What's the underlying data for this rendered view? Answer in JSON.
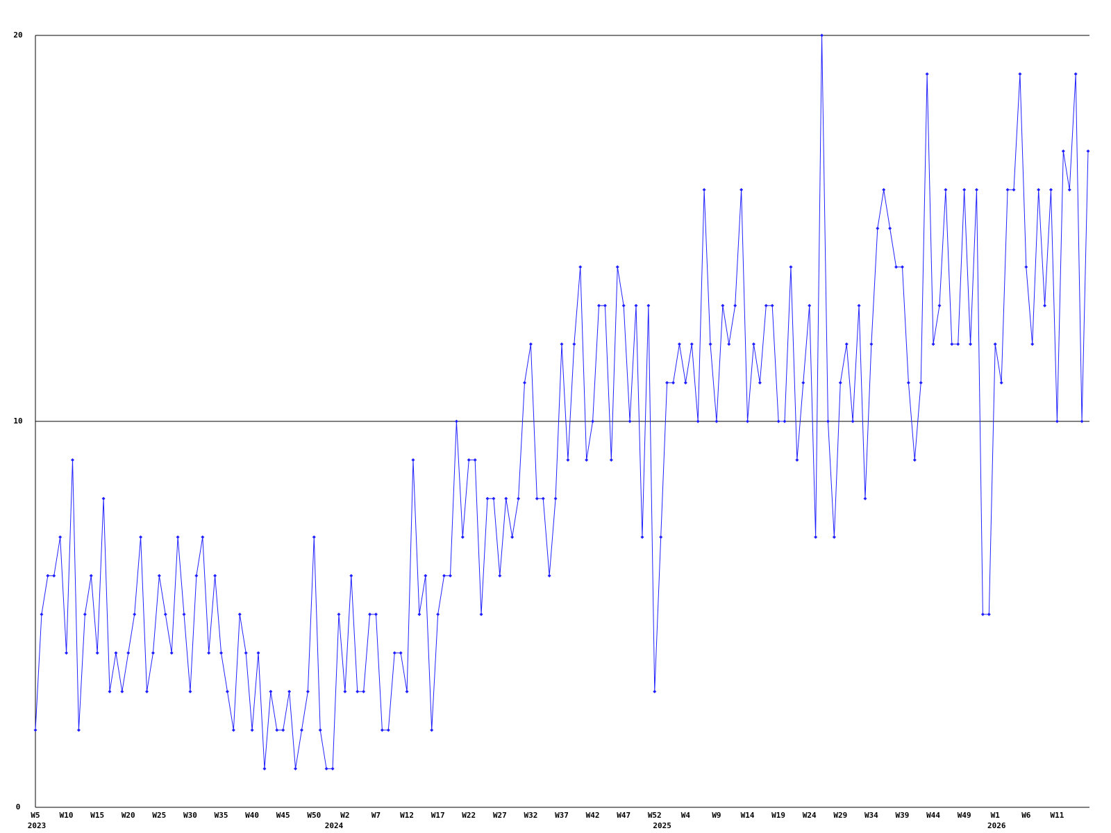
{
  "chart_data": {
    "type": "line",
    "categories": [
      "W5",
      null,
      null,
      null,
      null,
      "W10",
      null,
      null,
      null,
      null,
      "W15",
      null,
      null,
      null,
      null,
      "W20",
      null,
      null,
      null,
      null,
      "W25",
      null,
      null,
      null,
      null,
      "W30",
      null,
      null,
      null,
      null,
      "W35",
      null,
      null,
      null,
      null,
      "W40",
      null,
      null,
      null,
      null,
      "W45",
      null,
      null,
      null,
      null,
      "W50",
      null,
      null,
      null,
      null,
      "W2",
      null,
      null,
      null,
      null,
      "W7",
      null,
      null,
      null,
      null,
      "W12",
      null,
      null,
      null,
      null,
      "W17",
      null,
      null,
      null,
      null,
      "W22",
      null,
      null,
      null,
      null,
      "W27",
      null,
      null,
      null,
      null,
      "W32",
      null,
      null,
      null,
      null,
      "W37",
      null,
      null,
      null,
      null,
      "W42",
      null,
      null,
      null,
      null,
      "W47",
      null,
      null,
      null,
      null,
      "W52",
      null,
      null,
      null,
      null,
      "W4",
      null,
      null,
      null,
      null,
      "W9",
      null,
      null,
      null,
      null,
      "W14",
      null,
      null,
      null,
      null,
      "W19",
      null,
      null,
      null,
      null,
      "W24",
      null,
      null,
      null,
      null,
      "W29",
      null,
      null,
      null,
      null,
      "W34",
      null,
      null,
      null,
      null,
      "W39",
      null,
      null,
      null,
      null,
      "W44",
      null,
      null,
      null,
      null,
      "W49",
      null,
      null,
      null,
      null,
      "W1",
      null,
      null,
      null,
      null,
      "W6",
      null,
      null,
      null,
      null,
      "W11",
      null,
      null,
      null,
      null,
      null
    ],
    "years": [
      "2023",
      null,
      null,
      null,
      null,
      null,
      null,
      null,
      null,
      null,
      null,
      null,
      null,
      null,
      null,
      null,
      null,
      null,
      null,
      null,
      null,
      null,
      null,
      null,
      null,
      null,
      null,
      null,
      null,
      null,
      null,
      null,
      null,
      null,
      null,
      null,
      null,
      null,
      null,
      null,
      null,
      null,
      null,
      null,
      null,
      null,
      null,
      null,
      "2024",
      null,
      null,
      null,
      null,
      null,
      null,
      null,
      null,
      null,
      null,
      null,
      null,
      null,
      null,
      null,
      null,
      null,
      null,
      null,
      null,
      null,
      null,
      null,
      null,
      null,
      null,
      null,
      null,
      null,
      null,
      null,
      null,
      null,
      null,
      null,
      null,
      null,
      null,
      null,
      null,
      null,
      null,
      null,
      null,
      null,
      null,
      null,
      null,
      null,
      null,
      null,
      null,
      "2025",
      null,
      null,
      null,
      null,
      null,
      null,
      null,
      null,
      null,
      null,
      null,
      null,
      null,
      null,
      null,
      null,
      null,
      null,
      null,
      null,
      null,
      null,
      null,
      null,
      null,
      null,
      null,
      null,
      null,
      null,
      null,
      null,
      null,
      null,
      null,
      null,
      null,
      null,
      null,
      null,
      null,
      null,
      null,
      null,
      null,
      null,
      null,
      null,
      null,
      null,
      null,
      null,
      null,
      "2026",
      null,
      null,
      null,
      null,
      null,
      null,
      null,
      null,
      null,
      null,
      null,
      null,
      null,
      null,
      null
    ],
    "values": [
      2,
      5,
      6,
      6,
      7,
      4,
      9,
      2,
      5,
      6,
      4,
      8,
      3,
      4,
      3,
      4,
      5,
      7,
      3,
      4,
      6,
      5,
      4,
      7,
      5,
      3,
      6,
      7,
      4,
      6,
      4,
      3,
      2,
      5,
      4,
      2,
      4,
      1,
      3,
      2,
      2,
      3,
      1,
      2,
      3,
      7,
      2,
      1,
      1,
      5,
      3,
      6,
      3,
      3,
      5,
      5,
      2,
      2,
      4,
      4,
      3,
      9,
      5,
      6,
      2,
      5,
      6,
      6,
      10,
      7,
      9,
      9,
      5,
      8,
      8,
      6,
      8,
      7,
      8,
      11,
      12,
      8,
      8,
      6,
      8,
      12,
      9,
      12,
      14,
      9,
      10,
      13,
      13,
      9,
      14,
      13,
      10,
      13,
      7,
      13,
      3,
      7,
      11,
      11,
      12,
      11,
      12,
      10,
      16,
      12,
      10,
      13,
      12,
      13,
      16,
      10,
      12,
      11,
      13,
      13,
      10,
      10,
      14,
      9,
      11,
      13,
      7,
      20,
      10,
      7,
      11,
      12,
      10,
      13,
      8,
      12,
      15,
      16,
      15,
      14,
      14,
      11,
      9,
      11,
      19,
      12,
      13,
      16,
      12,
      12,
      16,
      12,
      16,
      5,
      5,
      12,
      11,
      16,
      16,
      19,
      14,
      12,
      16,
      13,
      16,
      10,
      17,
      16,
      19,
      10,
      17
    ],
    "color": "#2020ff",
    "ylim": [
      0,
      20
    ],
    "yticks": [
      0,
      10,
      20
    ],
    "grid": true
  }
}
